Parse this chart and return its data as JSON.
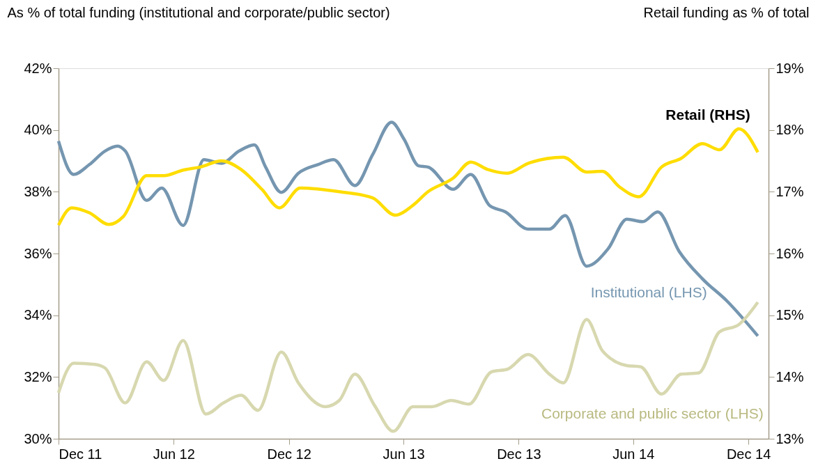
{
  "chart_data": {
    "type": "line",
    "ylabel": "As % of total funding (institutional and corporate/public sector)",
    "y2label": "Retail funding as % of total",
    "xlim": [
      "2011-12-01",
      "2015-01-02"
    ],
    "xticks": [
      {
        "value": "2011-12",
        "label": "Dec 11"
      },
      {
        "value": "2012-06",
        "label": "Jun 12"
      },
      {
        "value": "2012-12",
        "label": "Dec 12"
      },
      {
        "value": "2013-06",
        "label": "Jun 13"
      },
      {
        "value": "2013-12",
        "label": "Dec 13"
      },
      {
        "value": "2014-06",
        "label": "Jun 14"
      },
      {
        "value": "2014-12",
        "label": "Dec 14"
      }
    ],
    "grid": false,
    "ylim": [
      30,
      42
    ],
    "yticks": [
      {
        "value": 30,
        "label": "30%"
      },
      {
        "value": 32,
        "label": "32%"
      },
      {
        "value": 34,
        "label": "34%"
      },
      {
        "value": 36,
        "label": "36%"
      },
      {
        "value": 38,
        "label": "38%"
      },
      {
        "value": 40,
        "label": "40%"
      },
      {
        "value": 42,
        "label": "42%"
      }
    ],
    "y2lim": [
      13,
      19
    ],
    "y2ticks": [
      {
        "value": 13,
        "label": "13%"
      },
      {
        "value": 14,
        "label": "14%"
      },
      {
        "value": 15,
        "label": "15%"
      },
      {
        "value": 16,
        "label": "16%"
      },
      {
        "value": 17,
        "label": "17%"
      },
      {
        "value": 18,
        "label": "18%"
      },
      {
        "value": 19,
        "label": "19%"
      }
    ],
    "marker": "none",
    "line_style": "solid",
    "series": [
      {
        "name": "Institutional (LHS)",
        "color": "#7596b0",
        "x": [
          "2011-12-01",
          "2011-12-25",
          "2012-01-19",
          "2012-02-13",
          "2012-03-04",
          "2012-03-16",
          "2012-04-19",
          "2012-05-13",
          "2012-06-16",
          "2012-07-19",
          "2012-08-16",
          "2012-09-13",
          "2012-10-07",
          "2012-10-25",
          "2012-11-19",
          "2012-12-16",
          "2013-01-16",
          "2013-02-10",
          "2013-03-16",
          "2013-04-13",
          "2013-05-13",
          "2013-06-02",
          "2013-06-25",
          "2013-07-10",
          "2013-08-19",
          "2013-09-16",
          "2013-10-16",
          "2013-11-10",
          "2013-12-16",
          "2014-01-19",
          "2014-02-13",
          "2014-03-19",
          "2014-04-22",
          "2014-05-22",
          "2014-06-16",
          "2014-07-10",
          "2014-08-13",
          "2014-09-19",
          "2014-10-28",
          "2014-12-16"
        ],
        "values": [
          39.64,
          38.56,
          38.88,
          39.32,
          39.48,
          39.32,
          37.72,
          38.12,
          36.91,
          39.04,
          38.92,
          39.32,
          39.52,
          38.8,
          37.98,
          38.6,
          38.88,
          39.04,
          38.2,
          39.2,
          40.25,
          39.7,
          38.84,
          38.8,
          38.08,
          38.56,
          37.55,
          37.35,
          36.79,
          36.79,
          37.23,
          35.59,
          36.15,
          37.11,
          37.03,
          37.35,
          36.07,
          35.18,
          34.46,
          33.33
        ]
      },
      {
        "name": "Corporate and public sector (LHS)",
        "color": "#d8d8b0",
        "x": [
          "2011-12-01",
          "2011-12-25",
          "2012-01-28",
          "2012-02-13",
          "2012-03-16",
          "2012-04-19",
          "2012-05-16",
          "2012-06-16",
          "2012-07-22",
          "2012-08-19",
          "2012-09-16",
          "2012-10-13",
          "2012-11-19",
          "2012-12-16",
          "2013-01-28",
          "2013-02-19",
          "2013-03-16",
          "2013-04-16",
          "2013-05-16",
          "2013-06-16",
          "2013-07-16",
          "2013-08-16",
          "2013-09-13",
          "2013-10-19",
          "2013-11-13",
          "2013-12-16",
          "2014-01-19",
          "2014-02-10",
          "2014-03-19",
          "2014-04-13",
          "2014-05-22",
          "2014-06-13",
          "2014-07-16",
          "2014-08-16",
          "2014-09-13",
          "2014-10-16",
          "2014-11-16",
          "2014-12-16"
        ],
        "values": [
          31.49,
          32.45,
          32.41,
          32.29,
          31.16,
          32.49,
          31.89,
          33.18,
          30.8,
          31.16,
          31.41,
          30.92,
          32.81,
          31.81,
          31.04,
          31.24,
          32.09,
          31.08,
          30.24,
          31.04,
          31.04,
          31.24,
          31.12,
          32.17,
          32.25,
          32.73,
          32.09,
          31.81,
          33.86,
          32.85,
          32.37,
          32.33,
          31.45,
          32.09,
          32.13,
          33.46,
          33.7,
          34.42
        ]
      },
      {
        "name": "Retail (RHS)",
        "color": "#ffdd00",
        "axis": "y2",
        "x": [
          "2011-12-01",
          "2011-12-22",
          "2012-01-19",
          "2012-02-19",
          "2012-03-13",
          "2012-04-19",
          "2012-05-16",
          "2012-06-16",
          "2012-07-13",
          "2012-08-16",
          "2012-09-16",
          "2012-10-19",
          "2012-11-16",
          "2012-12-19",
          "2013-02-19",
          "2013-04-13",
          "2013-05-19",
          "2013-06-16",
          "2013-07-10",
          "2013-08-19",
          "2013-09-16",
          "2013-10-13",
          "2013-11-13",
          "2013-12-16",
          "2014-02-10",
          "2014-03-19",
          "2014-04-13",
          "2014-05-10",
          "2014-06-10",
          "2014-07-16",
          "2014-08-16",
          "2014-09-19",
          "2014-10-16",
          "2014-11-16",
          "2014-12-16"
        ],
        "values": [
          16.46,
          16.74,
          16.66,
          16.47,
          16.6,
          17.26,
          17.26,
          17.35,
          17.4,
          17.5,
          17.36,
          17.04,
          16.74,
          17.06,
          17.0,
          16.9,
          16.62,
          16.78,
          17.0,
          17.22,
          17.48,
          17.36,
          17.3,
          17.46,
          17.56,
          17.32,
          17.33,
          17.08,
          16.92,
          17.4,
          17.54,
          17.78,
          17.68,
          18.02,
          17.64
        ]
      }
    ]
  }
}
